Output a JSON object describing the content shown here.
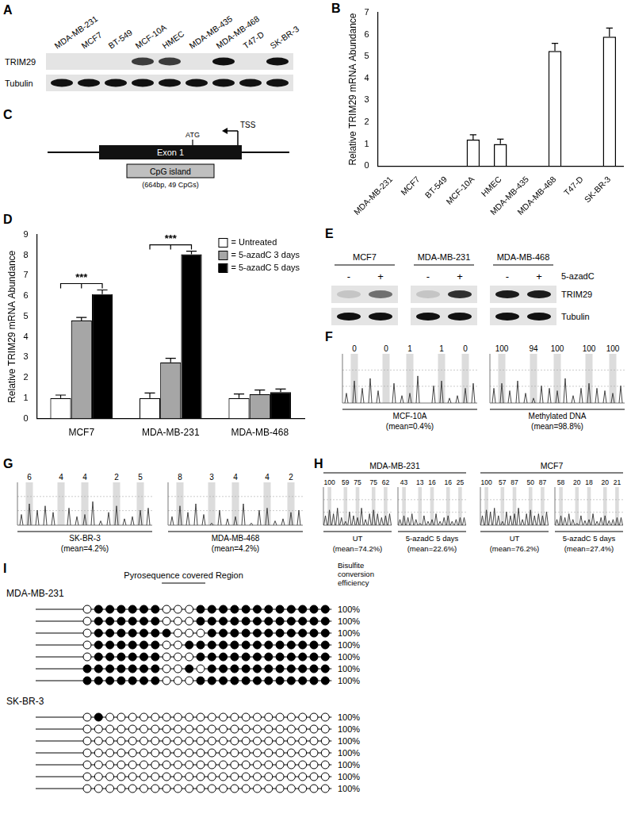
{
  "chart_data": [
    {
      "label": "B",
      "type": "bar",
      "ylabel": "Relative TRIM29 mRNA Abundance",
      "categories": [
        "MDA-MB-231",
        "MCF7",
        "BT-549",
        "MCF-10A",
        "HMEC",
        "MDA-MB-435",
        "MDA-MB-468",
        "T47-D",
        "SK-BR-3"
      ],
      "values": [
        0,
        0,
        0,
        1.2,
        1.0,
        0,
        5.25,
        0,
        5.9
      ],
      "errors": [
        0,
        0,
        0,
        0.22,
        0.22,
        0,
        0.35,
        0,
        0.4
      ],
      "color": "#ffffff",
      "ylim": [
        0,
        7
      ],
      "yticks": [
        0,
        1,
        2,
        3,
        4,
        5,
        6,
        7
      ],
      "grid": false
    },
    {
      "label": "D",
      "type": "bar",
      "ylabel": "Relative TRIM29 mRNA Abundance",
      "categories": [
        "MCF7",
        "MDA-MB-231",
        "MDA-MB-468"
      ],
      "series": [
        {
          "name": "= Untreated",
          "color": "#ffffff",
          "values": [
            1,
            1,
            1
          ],
          "errors": [
            0.15,
            0.25,
            0.2
          ]
        },
        {
          "name": "= 5-azadC 3 days",
          "color": "#a6a6a6",
          "values": [
            4.8,
            2.75,
            1.2
          ],
          "errors": [
            0.15,
            0.2,
            0.2
          ]
        },
        {
          "name": "= 5-azadC 5 days",
          "color": "#000000",
          "values": [
            6.1,
            8.05,
            1.3
          ],
          "errors": [
            0.2,
            0.15,
            0.15
          ]
        }
      ],
      "ylim": [
        0,
        9
      ],
      "yticks": [
        0,
        1,
        2,
        3,
        4,
        5,
        6,
        7,
        8,
        9
      ],
      "grid": false,
      "legend": "upper right",
      "annotations": [
        {
          "text": "***",
          "category": "MCF7"
        },
        {
          "text": "***",
          "category": "MDA-MB-231"
        }
      ]
    }
  ],
  "figure": {
    "A": {
      "label": "A",
      "lanes": [
        "MDA-MB-231",
        "MCF7",
        "BT-549",
        "MCF-10A",
        "HMEC",
        "MDA-MB-435",
        "MDA-MB-468",
        "T47-D",
        "SK-BR-3"
      ],
      "rows": [
        {
          "name": "TRIM29",
          "bands": [
            0,
            0,
            0,
            0.8,
            0.8,
            0,
            1,
            0,
            1
          ]
        },
        {
          "name": "Tubulin",
          "bands": [
            1,
            1,
            1,
            1,
            1,
            1,
            1,
            1,
            1
          ]
        }
      ]
    },
    "C": {
      "label": "C",
      "tss": "TSS",
      "atg": "ATG",
      "exon": "Exon 1",
      "island": "CpG island",
      "island_note": "(664bp, 49 CpGs)"
    },
    "E": {
      "label": "E",
      "treatment": "5-azadC",
      "rows": [
        "TRIM29",
        "Tubulin"
      ],
      "groups": [
        {
          "name": "MCF7",
          "lanes": [
            "-",
            "+"
          ],
          "bands": [
            [
              0.15,
              0.55
            ],
            [
              1,
              1
            ]
          ]
        },
        {
          "name": "MDA-MB-231",
          "lanes": [
            "-",
            "+"
          ],
          "bands": [
            [
              0.15,
              0.85
            ],
            [
              1,
              1
            ]
          ]
        },
        {
          "name": "MDA-MB-468",
          "lanes": [
            "-",
            "+"
          ],
          "bands": [
            [
              0.95,
              0.95
            ],
            [
              1,
              1
            ]
          ]
        }
      ]
    },
    "F": {
      "label": "F",
      "pyrograms": [
        {
          "name": "MCF-10A",
          "mean": "(mean=0.4%)",
          "cpg_values": [
            0,
            0,
            1,
            1,
            0
          ],
          "peaks": [
            20,
            45,
            30,
            50,
            25,
            0,
            40,
            15,
            20,
            55,
            0,
            35,
            45,
            10,
            15,
            30,
            40
          ]
        },
        {
          "name": "Methylated DNA",
          "mean": "(mean=98.8%)",
          "cpg_values": [
            100,
            94,
            100,
            100,
            100
          ],
          "peaks": [
            30,
            40,
            25,
            45,
            20,
            10,
            35,
            30,
            25,
            50,
            15,
            30,
            40,
            30,
            25,
            20,
            35
          ]
        }
      ]
    },
    "G": {
      "label": "G",
      "pyrograms": [
        {
          "name": "SK-BR-3",
          "mean": "(mean=4.2%)",
          "cpg_values": [
            6,
            4,
            4,
            2,
            5
          ],
          "peaks": [
            25,
            50,
            35,
            45,
            30,
            0,
            40,
            20,
            25,
            55,
            10,
            30,
            45,
            15,
            20,
            35,
            40
          ]
        },
        {
          "name": "MDA-MB-468",
          "mean": "(mean=4.2%)",
          "cpg_values": [
            8,
            3,
            4,
            4,
            2
          ],
          "peaks": [
            20,
            45,
            30,
            50,
            25,
            5,
            35,
            15,
            20,
            50,
            5,
            35,
            40,
            10,
            15,
            30,
            35
          ]
        }
      ]
    },
    "H": {
      "label": "H",
      "groups": [
        {
          "name": "MDA-MB-231",
          "pyrograms": [
            {
              "name": "UT",
              "mean": "(mean=74.2%)",
              "cpg_values": [
                100,
                59,
                75,
                75,
                62
              ],
              "peaks": [
                25,
                40,
                30,
                45,
                20,
                10,
                35,
                25,
                20,
                45,
                15,
                30,
                40,
                30,
                20,
                25,
                30
              ]
            },
            {
              "name": "5-azadC 5 days",
              "mean": "(mean=22.6%)",
              "cpg_values": [
                43,
                13,
                16,
                16,
                25
              ],
              "peaks": [
                15,
                25,
                20,
                30,
                15,
                5,
                25,
                10,
                15,
                30,
                10,
                20,
                25,
                10,
                15,
                20,
                20
              ]
            }
          ]
        },
        {
          "name": "MCF7",
          "pyrograms": [
            {
              "name": "UT",
              "mean": "(mean=76.2%)",
              "cpg_values": [
                100,
                57,
                87,
                50,
                87
              ],
              "peaks": [
                25,
                40,
                35,
                45,
                25,
                10,
                35,
                25,
                30,
                45,
                15,
                30,
                40,
                25,
                30,
                25,
                35
              ]
            },
            {
              "name": "5-azadC 5 days",
              "mean": "(mean=27.4%)",
              "cpg_values": [
                58,
                20,
                18,
                20,
                21
              ],
              "peaks": [
                15,
                25,
                20,
                30,
                15,
                5,
                25,
                12,
                15,
                30,
                10,
                20,
                25,
                12,
                15,
                20,
                20
              ]
            }
          ]
        }
      ]
    },
    "I": {
      "label": "I",
      "region": "Pyrosequence covered Region",
      "efficiency_header": [
        "Bisulfite",
        "conversion",
        "efficiency"
      ],
      "samples": [
        {
          "name": "MDA-MB-231",
          "rows": [
            {
              "methylation": [
                0,
                1,
                1,
                1,
                1,
                1,
                1,
                0,
                0,
                0,
                1,
                1,
                1,
                1,
                1,
                1,
                1,
                1,
                1,
                1,
                1,
                1
              ],
              "efficiency": "100%"
            },
            {
              "methylation": [
                0,
                1,
                1,
                1,
                1,
                1,
                1,
                0,
                0,
                0,
                1,
                1,
                1,
                1,
                1,
                1,
                1,
                1,
                1,
                1,
                1,
                1
              ],
              "efficiency": "100%"
            },
            {
              "methylation": [
                0,
                1,
                1,
                1,
                1,
                1,
                1,
                1,
                0,
                0,
                0,
                1,
                1,
                1,
                1,
                1,
                1,
                1,
                1,
                1,
                1,
                1
              ],
              "efficiency": "100%"
            },
            {
              "methylation": [
                0,
                1,
                1,
                1,
                1,
                1,
                1,
                0,
                0,
                1,
                1,
                1,
                1,
                1,
                1,
                1,
                1,
                1,
                1,
                1,
                1,
                1
              ],
              "efficiency": "100%"
            },
            {
              "methylation": [
                0,
                1,
                1,
                1,
                1,
                1,
                1,
                0,
                0,
                0,
                1,
                1,
                1,
                1,
                1,
                1,
                1,
                1,
                1,
                1,
                1,
                1
              ],
              "efficiency": "100%"
            },
            {
              "methylation": [
                1,
                1,
                1,
                1,
                1,
                1,
                1,
                0,
                0,
                1,
                0,
                1,
                1,
                1,
                1,
                1,
                1,
                1,
                1,
                1,
                1,
                1
              ],
              "efficiency": "100%"
            },
            {
              "methylation": [
                1,
                1,
                1,
                1,
                1,
                1,
                1,
                0,
                0,
                0,
                1,
                1,
                1,
                1,
                1,
                1,
                1,
                1,
                1,
                1,
                1,
                1
              ],
              "efficiency": "100%"
            }
          ]
        },
        {
          "name": "SK-BR-3",
          "rows": [
            {
              "methylation": [
                0,
                1,
                0,
                0,
                0,
                0,
                0,
                0,
                0,
                0,
                0,
                0,
                0,
                0,
                0,
                0,
                0,
                0,
                0,
                0,
                0,
                0
              ],
              "efficiency": "100%"
            },
            {
              "methylation": [
                0,
                0,
                0,
                0,
                0,
                0,
                0,
                0,
                0,
                0,
                0,
                0,
                0,
                0,
                0,
                0,
                0,
                0,
                0,
                0,
                0,
                0
              ],
              "efficiency": "100%"
            },
            {
              "methylation": [
                0,
                0,
                0,
                0,
                0,
                0,
                0,
                0,
                0,
                0,
                0,
                0,
                0,
                0,
                0,
                0,
                0,
                0,
                0,
                0,
                0,
                0
              ],
              "efficiency": "100%"
            },
            {
              "methylation": [
                0,
                0,
                0,
                0,
                0,
                0,
                0,
                0,
                0,
                0,
                0,
                0,
                0,
                0,
                0,
                0,
                0,
                0,
                0,
                0,
                0,
                0
              ],
              "efficiency": "100%"
            },
            {
              "methylation": [
                0,
                0,
                0,
                0,
                0,
                0,
                0,
                0,
                0,
                0,
                0,
                0,
                0,
                0,
                0,
                0,
                0,
                0,
                0,
                0,
                0,
                0
              ],
              "efficiency": "100%"
            },
            {
              "methylation": [
                0,
                0,
                0,
                0,
                0,
                0,
                0,
                0,
                0,
                0,
                0,
                0,
                0,
                0,
                0,
                0,
                0,
                0,
                0,
                0,
                0,
                0
              ],
              "efficiency": "100%"
            },
            {
              "methylation": [
                0,
                0,
                0,
                0,
                0,
                0,
                0,
                0,
                0,
                0,
                0,
                0,
                0,
                0,
                0,
                0,
                0,
                0,
                0,
                0,
                0,
                0
              ],
              "efficiency": "100%"
            }
          ]
        }
      ]
    }
  }
}
